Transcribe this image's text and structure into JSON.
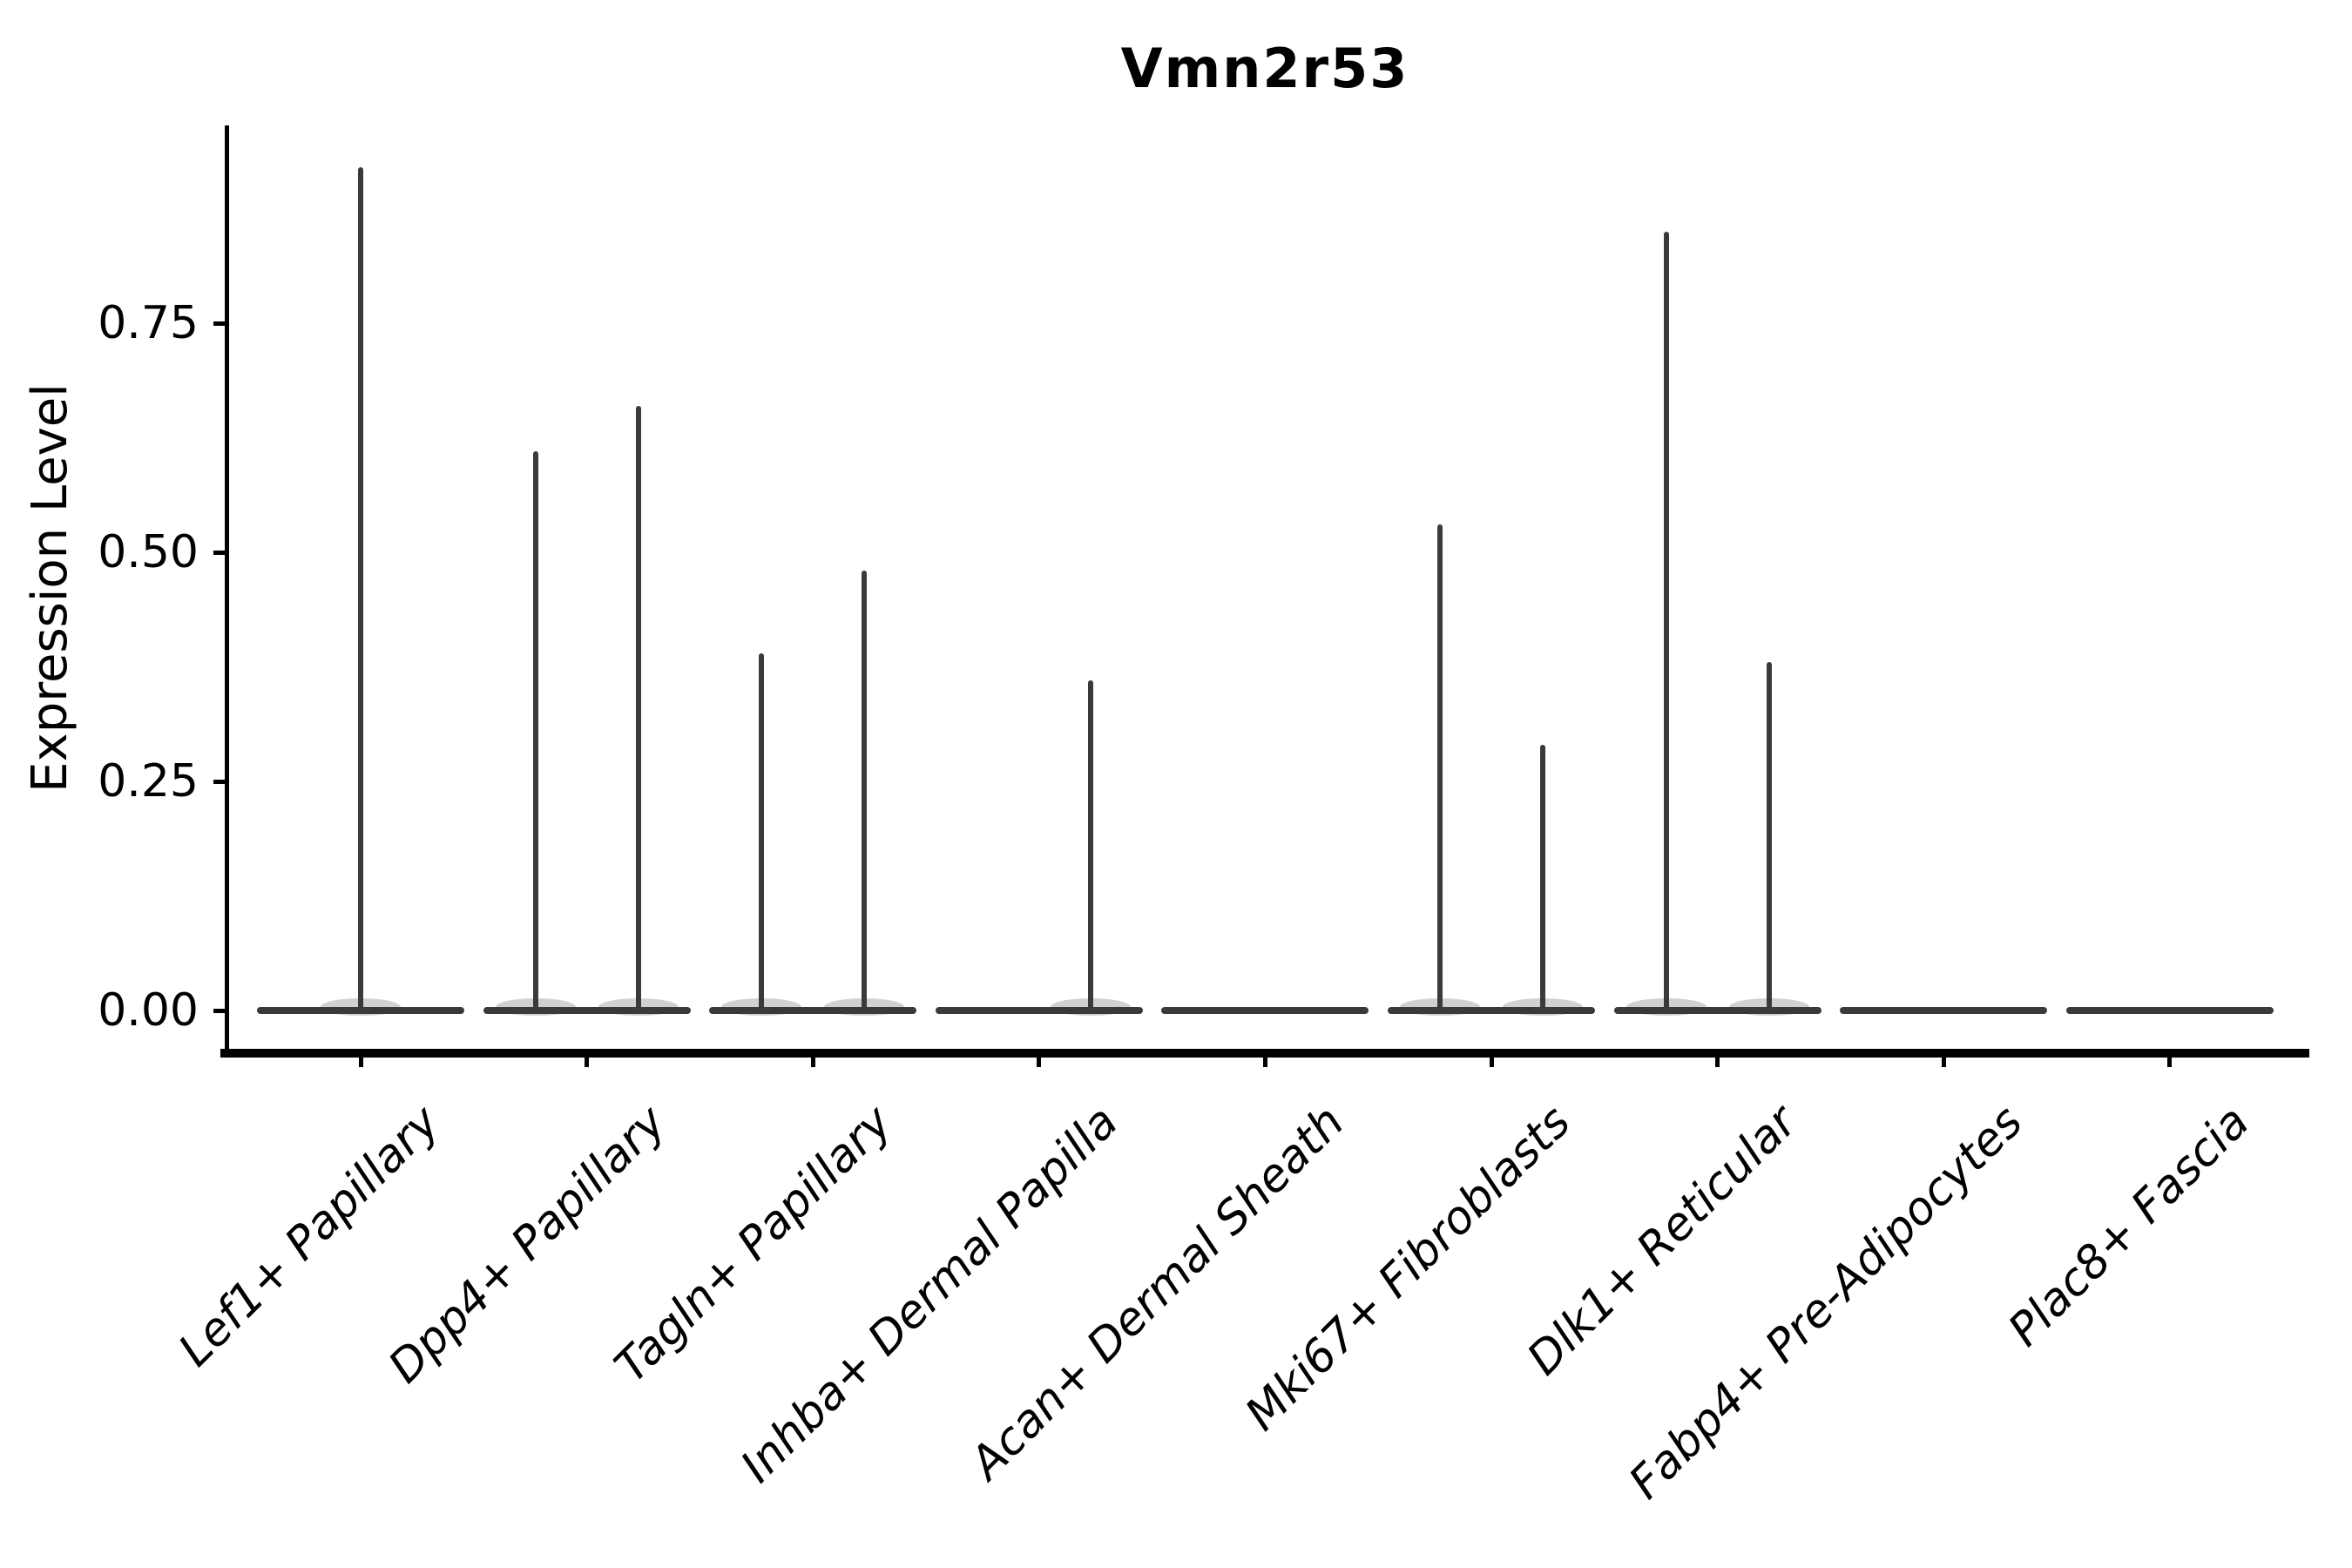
{
  "figure": {
    "background": "#ffffff",
    "axis_color": "#000000",
    "violin_color": "#3a3a3a",
    "violin_fill_hint": "#ababab"
  },
  "chart_data": {
    "type": "violin",
    "title": "Vmn2r53",
    "xlabel": "",
    "ylabel": "Expression Level",
    "ylim": [
      0,
      0.97
    ],
    "yticks": [
      0,
      0.25,
      0.5,
      0.75
    ],
    "ytick_labels": [
      "0.00",
      "0.25",
      "0.50",
      "0.75"
    ],
    "x_tick_rotation_deg": 45,
    "grid": "off",
    "legend": "none",
    "categories": [
      "Lef1+ Papillary",
      "Dpp4+ Papillary",
      "Tagln+ Papillary",
      "Inhba+ Dermal Papilla",
      "Acan+ Dermal Sheath",
      "Mki67+ Fibroblasts",
      "Dlk1+ Reticular",
      "Fabp4+ Pre-Adipocytes",
      "Plac8+ Fascia"
    ],
    "violins": [
      {
        "category": "Lef1+ Papillary",
        "baseline_density_at_zero": true,
        "spikes": [
          {
            "pos": "center",
            "max_expression": 0.92
          }
        ]
      },
      {
        "category": "Dpp4+ Papillary",
        "baseline_density_at_zero": true,
        "spikes": [
          {
            "pos": "left",
            "max_expression": 0.61
          },
          {
            "pos": "right",
            "max_expression": 0.66
          }
        ]
      },
      {
        "category": "Tagln+ Papillary",
        "baseline_density_at_zero": true,
        "spikes": [
          {
            "pos": "left",
            "max_expression": 0.39
          },
          {
            "pos": "right",
            "max_expression": 0.48
          }
        ]
      },
      {
        "category": "Inhba+ Dermal Papilla",
        "baseline_density_at_zero": true,
        "spikes": [
          {
            "pos": "right",
            "max_expression": 0.36
          }
        ]
      },
      {
        "category": "Acan+ Dermal Sheath",
        "baseline_density_at_zero": true,
        "spikes": []
      },
      {
        "category": "Mki67+ Fibroblasts",
        "baseline_density_at_zero": true,
        "spikes": [
          {
            "pos": "left",
            "max_expression": 0.53
          },
          {
            "pos": "right",
            "max_expression": 0.29
          }
        ]
      },
      {
        "category": "Dlk1+ Reticular",
        "baseline_density_at_zero": true,
        "spikes": [
          {
            "pos": "left",
            "max_expression": 0.85
          },
          {
            "pos": "right",
            "max_expression": 0.38
          }
        ]
      },
      {
        "category": "Fabp4+ Pre-Adipocytes",
        "baseline_density_at_zero": true,
        "spikes": []
      },
      {
        "category": "Plac8+ Fascia",
        "baseline_density_at_zero": true,
        "spikes": []
      }
    ]
  }
}
